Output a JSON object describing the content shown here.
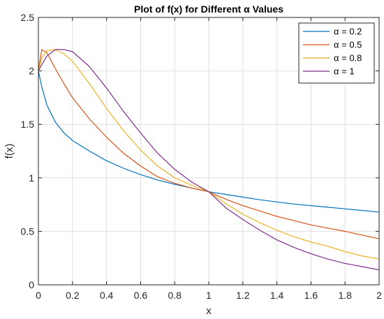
{
  "chart_data": {
    "type": "line",
    "title": "Plot of f(x) for Different α Values",
    "xlabel": "x",
    "ylabel": "f(x)",
    "xlim": [
      0,
      2
    ],
    "ylim": [
      0,
      2.5
    ],
    "grid": true,
    "legend_position": "top-right",
    "x_ticks": [
      "0",
      "0.2",
      "0.4",
      "0.6",
      "0.8",
      "1",
      "1.2",
      "1.4",
      "1.6",
      "1.8",
      "2"
    ],
    "y_ticks": [
      "0",
      "0.5",
      "1",
      "1.5",
      "2",
      "2.5"
    ],
    "x": [
      0,
      0.02,
      0.05,
      0.1,
      0.15,
      0.2,
      0.3,
      0.4,
      0.5,
      0.6,
      0.7,
      0.8,
      0.9,
      1.0,
      1.1,
      1.2,
      1.3,
      1.4,
      1.5,
      1.6,
      1.7,
      1.8,
      1.9,
      2.0
    ],
    "series": [
      {
        "name": "α = 0.2",
        "color": "#0072BD",
        "values": [
          2.0,
          1.85,
          1.68,
          1.52,
          1.42,
          1.35,
          1.25,
          1.16,
          1.09,
          1.03,
          0.98,
          0.94,
          0.905,
          0.87,
          0.845,
          0.82,
          0.795,
          0.775,
          0.755,
          0.74,
          0.725,
          0.71,
          0.695,
          0.68
        ]
      },
      {
        "name": "α = 0.5",
        "color": "#D95319",
        "values": [
          2.0,
          2.2,
          2.17,
          2.02,
          1.88,
          1.75,
          1.55,
          1.38,
          1.23,
          1.11,
          1.01,
          0.95,
          0.905,
          0.87,
          0.8,
          0.74,
          0.69,
          0.64,
          0.6,
          0.56,
          0.53,
          0.5,
          0.465,
          0.43
        ]
      },
      {
        "name": "α = 0.8",
        "color": "#EDB120",
        "values": [
          2.0,
          2.12,
          2.19,
          2.2,
          2.16,
          2.09,
          1.88,
          1.65,
          1.44,
          1.26,
          1.11,
          1.0,
          0.93,
          0.87,
          0.76,
          0.66,
          0.58,
          0.51,
          0.45,
          0.4,
          0.36,
          0.31,
          0.27,
          0.24
        ]
      },
      {
        "name": "α = 1",
        "color": "#7E2F8E",
        "values": [
          2.0,
          2.06,
          2.14,
          2.2,
          2.2,
          2.18,
          2.04,
          1.84,
          1.62,
          1.42,
          1.23,
          1.08,
          0.96,
          0.87,
          0.72,
          0.61,
          0.51,
          0.42,
          0.35,
          0.29,
          0.24,
          0.2,
          0.17,
          0.14
        ]
      }
    ]
  }
}
